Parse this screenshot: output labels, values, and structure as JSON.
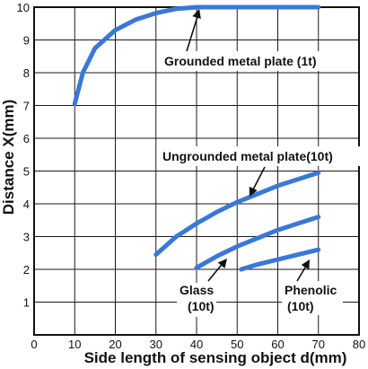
{
  "chart_data": {
    "type": "line",
    "xlabel": "Side length of sensing object d(mm)",
    "ylabel": "Distance X(mm)",
    "xlim": [
      0,
      80
    ],
    "ylim": [
      0,
      10
    ],
    "xticks": [
      "0",
      "10",
      "20",
      "30",
      "40",
      "50",
      "60",
      "70",
      "80"
    ],
    "yticks": [
      "1",
      "2",
      "3",
      "4",
      "5",
      "6",
      "7",
      "8",
      "9",
      "10"
    ],
    "grid": true,
    "line_color": "#3a78d8",
    "series": [
      {
        "name": "Grounded metal plate (1t)",
        "x": [
          10,
          12,
          15,
          20,
          25,
          30,
          35,
          40,
          50,
          60,
          70
        ],
        "y": [
          7.05,
          8.0,
          8.75,
          9.3,
          9.62,
          9.82,
          9.95,
          10.0,
          10.0,
          10.0,
          10.0
        ]
      },
      {
        "name": "Ungrounded metal plate(10t)",
        "x": [
          30,
          35,
          40,
          45,
          50,
          55,
          60,
          65,
          70
        ],
        "y": [
          2.45,
          3.0,
          3.4,
          3.75,
          4.05,
          4.3,
          4.55,
          4.75,
          4.95
        ]
      },
      {
        "name": "Glass (10t)",
        "x": [
          40,
          45,
          50,
          55,
          60,
          65,
          70
        ],
        "y": [
          2.05,
          2.4,
          2.7,
          2.95,
          3.2,
          3.4,
          3.6
        ]
      },
      {
        "name": "Phenolic (10t)",
        "x": [
          51,
          55,
          60,
          65,
          70
        ],
        "y": [
          2.0,
          2.15,
          2.3,
          2.45,
          2.6
        ]
      }
    ],
    "annotations": {
      "grounded": "Grounded metal plate (1t)",
      "ungrounded": "Ungrounded metal plate(10t)",
      "glass_line1": "Glass",
      "glass_line2": "(10t)",
      "phenolic_line1": "Phenolic",
      "phenolic_line2": "(10t)"
    }
  }
}
